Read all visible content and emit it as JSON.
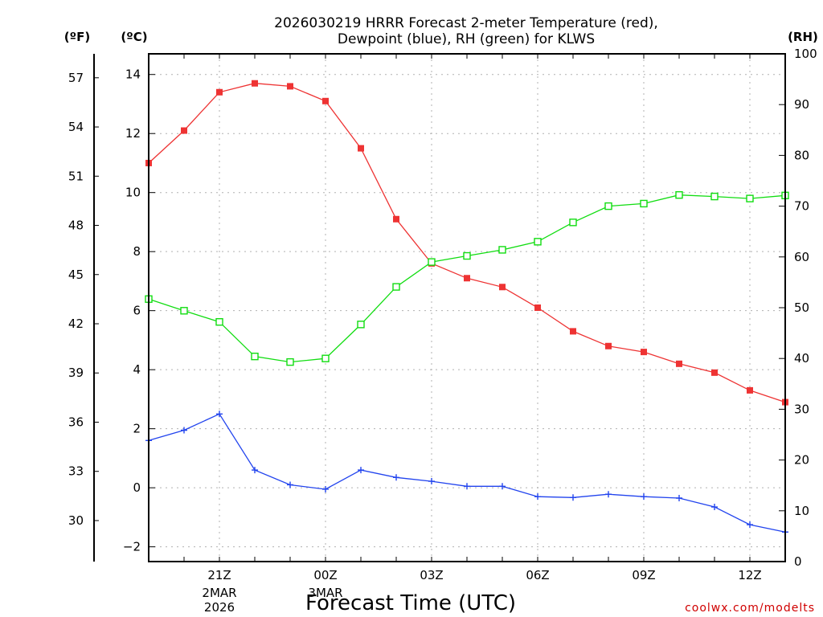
{
  "chart_data": {
    "type": "line",
    "title_line1": "2026030219 HRRR Forecast 2-meter Temperature (red),",
    "title_line2": "Dewpoint (blue), RH (green) for KLWS",
    "xlabel": "Forecast Time (UTC)",
    "credit": "coolwx.com/modelts",
    "unit_f": "(ºF)",
    "unit_c": "(ºC)",
    "unit_rh": "(RH)",
    "x_hours": [
      19,
      20,
      21,
      22,
      23,
      24,
      25,
      26,
      27,
      28,
      29,
      30,
      31,
      32,
      33,
      34,
      35,
      36,
      37
    ],
    "x_ticks": [
      {
        "hour": 21,
        "label": "21Z"
      },
      {
        "hour": 24,
        "label": "00Z"
      },
      {
        "hour": 27,
        "label": "03Z"
      },
      {
        "hour": 30,
        "label": "06Z"
      },
      {
        "hour": 33,
        "label": "09Z"
      },
      {
        "hour": 36,
        "label": "12Z"
      }
    ],
    "date_labels": [
      {
        "hour": 21,
        "lines": [
          "2MAR",
          "2026"
        ]
      },
      {
        "hour": 24,
        "lines": [
          "3MAR"
        ]
      }
    ],
    "xlim": [
      19,
      37
    ],
    "ylim_c": [
      -2.5,
      14.7
    ],
    "ylim_rh": [
      0,
      100
    ],
    "c_ticks": [
      -2,
      0,
      2,
      4,
      6,
      8,
      10,
      12,
      14
    ],
    "f_ticks": [
      30,
      33,
      36,
      39,
      42,
      45,
      48,
      51,
      54,
      57
    ],
    "rh_ticks": [
      0,
      10,
      20,
      30,
      40,
      50,
      60,
      70,
      80,
      90,
      100
    ],
    "series": [
      {
        "name": "Temperature",
        "color": "#ee3333",
        "marker": "filled-square",
        "axis": "c",
        "values": [
          11.0,
          12.1,
          13.4,
          13.7,
          13.6,
          13.1,
          11.5,
          9.1,
          7.6,
          7.1,
          6.8,
          6.1,
          5.3,
          4.8,
          4.6,
          4.2,
          3.9,
          3.3,
          2.9
        ]
      },
      {
        "name": "Dewpoint",
        "color": "#2244ee",
        "marker": "plus",
        "axis": "c",
        "values": [
          1.6,
          1.95,
          2.5,
          0.6,
          0.1,
          -0.05,
          0.6,
          0.35,
          0.22,
          0.05,
          0.05,
          -0.3,
          -0.33,
          -0.22,
          -0.3,
          -0.35,
          -0.65,
          -1.25,
          -1.5
        ]
      },
      {
        "name": "RH",
        "color": "#11dd11",
        "marker": "open-square",
        "axis": "rh",
        "values": [
          51.7,
          49.4,
          47.2,
          40.4,
          39.3,
          40.0,
          46.7,
          54.1,
          59.0,
          60.2,
          61.4,
          63.0,
          66.8,
          70.0,
          70.5,
          72.2,
          71.9,
          71.5,
          72.1
        ]
      }
    ]
  }
}
